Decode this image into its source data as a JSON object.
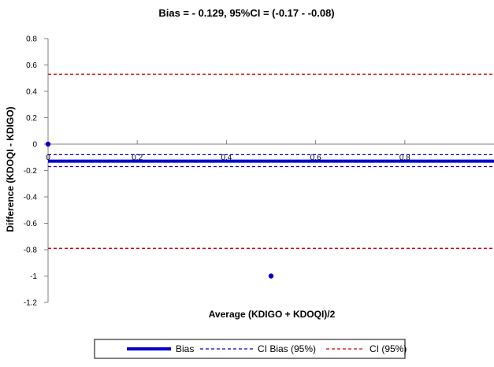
{
  "chart_data": {
    "type": "scatter",
    "title": "Bias = - 0.129, 95%CI = (-0.17 - -0.08)",
    "xlabel": "Average (KDIGO + KDOQI)/2",
    "ylabel": "Difference (KDOQI - KDIGO)",
    "xlim": [
      0,
      1
    ],
    "ylim": [
      -1.2,
      0.8
    ],
    "x_ticks": [
      {
        "value": 0,
        "label": "0"
      },
      {
        "value": 0.2,
        "label": "0.2"
      },
      {
        "value": 0.4,
        "label": "0.4"
      },
      {
        "value": 0.6,
        "label": "0.6"
      },
      {
        "value": 0.8,
        "label": "0.8"
      }
    ],
    "y_ticks": [
      {
        "value": 0.8,
        "label": "0.8"
      },
      {
        "value": 0.6,
        "label": "0.6"
      },
      {
        "value": 0.4,
        "label": "0.4"
      },
      {
        "value": 0.2,
        "label": "0.2"
      },
      {
        "value": 0,
        "label": "0"
      },
      {
        "value": -0.2,
        "label": "-0.2"
      },
      {
        "value": -0.4,
        "label": "-0.4"
      },
      {
        "value": -0.6,
        "label": "-0.6"
      },
      {
        "value": -0.8,
        "label": "-0.8"
      },
      {
        "value": -1,
        "label": "-1"
      },
      {
        "value": -1.2,
        "label": "-1.2"
      }
    ],
    "grid": false,
    "points": [
      {
        "x": 0,
        "y": 0
      },
      {
        "x": 0.5,
        "y": -1
      }
    ],
    "point_color": "#0000CC",
    "reference_lines": [
      {
        "id": "bias",
        "value": -0.129,
        "style": "solid",
        "color": "#0000CC"
      },
      {
        "id": "ci-bias-upper",
        "value": -0.08,
        "style": "dashed",
        "color": "#0000CC"
      },
      {
        "id": "ci-bias-lower",
        "value": -0.17,
        "style": "dashed",
        "color": "#0000CC"
      },
      {
        "id": "ci-upper",
        "value": 0.53,
        "style": "dashed",
        "color": "#CC0000"
      },
      {
        "id": "ci-lower",
        "value": -0.79,
        "style": "dashed",
        "color": "#CC0000"
      }
    ],
    "legend": {
      "placement": "bottom",
      "entries": [
        {
          "label": "Bias",
          "style": "solid",
          "color": "#0000CC"
        },
        {
          "label": "CI Bias (95%)",
          "style": "dashed",
          "color": "#0000CC"
        },
        {
          "label": "CI (95%)",
          "style": "dashed",
          "color": "#CC0000"
        }
      ]
    }
  }
}
